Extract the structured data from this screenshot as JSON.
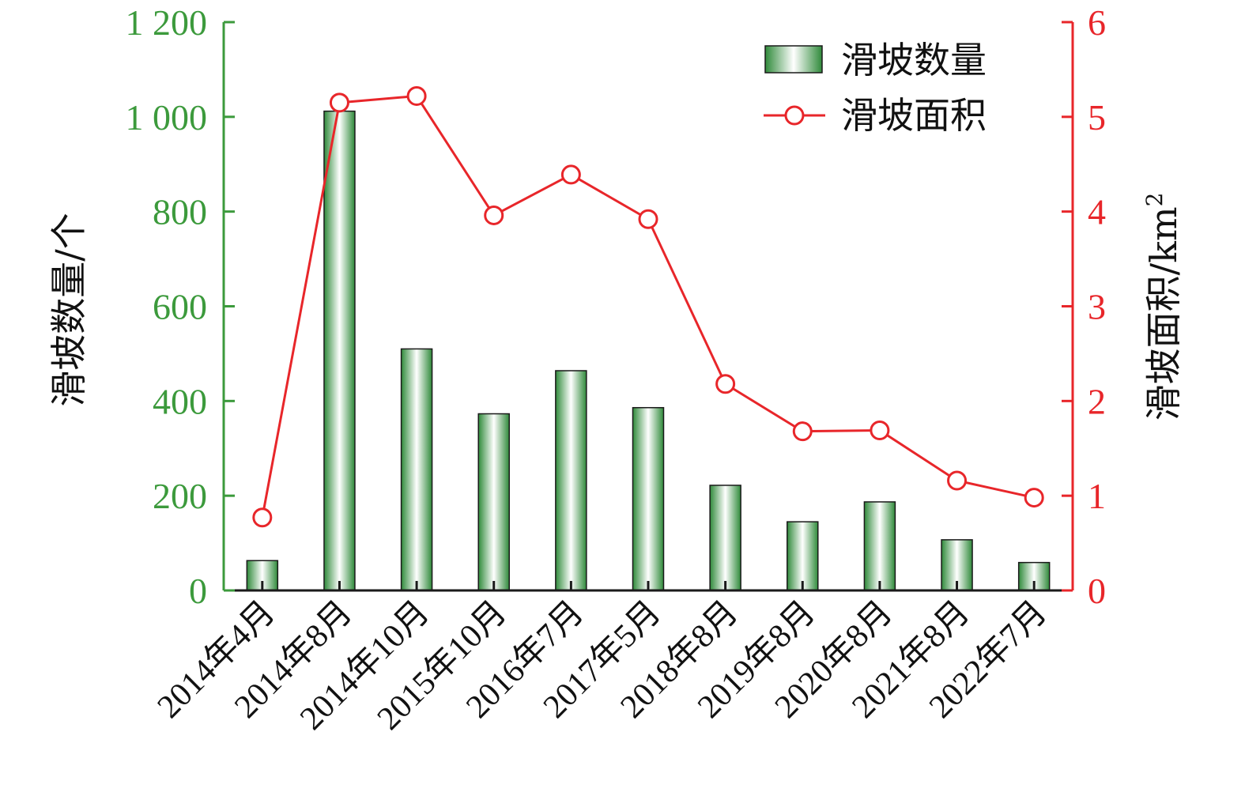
{
  "chart_data": {
    "type": "bar",
    "categories": [
      "2014年4月",
      "2014年8月",
      "2014年10月",
      "2015年10月",
      "2016年7月",
      "2017年5月",
      "2018年8月",
      "2019年8月",
      "2020年8月",
      "2021年8月",
      "2022年7月"
    ],
    "series": [
      {
        "name": "滑坡数量",
        "type": "bar",
        "axis": "left",
        "values": [
          63,
          1012,
          510,
          373,
          464,
          386,
          222,
          145,
          187,
          107,
          59
        ]
      },
      {
        "name": "滑坡面积",
        "type": "line",
        "axis": "right",
        "values": [
          0.77,
          5.15,
          5.22,
          3.96,
          4.39,
          3.92,
          2.18,
          1.68,
          1.69,
          1.16,
          0.98
        ]
      }
    ],
    "left_axis": {
      "label": "滑坡数量/个",
      "range": [
        0,
        1200
      ],
      "ticks": [
        0,
        200,
        400,
        600,
        800,
        1000,
        1200
      ],
      "tick_labels": [
        "0",
        "200",
        "400",
        "600",
        "800",
        "1 000",
        "1 200"
      ],
      "color": "#3c9a3c"
    },
    "right_axis": {
      "label": "滑坡面积/km",
      "label_sup": "2",
      "range": [
        0,
        6
      ],
      "ticks": [
        0,
        1,
        2,
        3,
        4,
        5,
        6
      ],
      "tick_labels": [
        "0",
        "1",
        "2",
        "3",
        "4",
        "5",
        "6"
      ],
      "color": "#e8262a"
    },
    "legend": {
      "position": "top-right"
    },
    "grid": false,
    "colors": {
      "bar_dark": "#2f8a3a",
      "bar_light": "#ffffff",
      "line": "#e8262a"
    }
  }
}
